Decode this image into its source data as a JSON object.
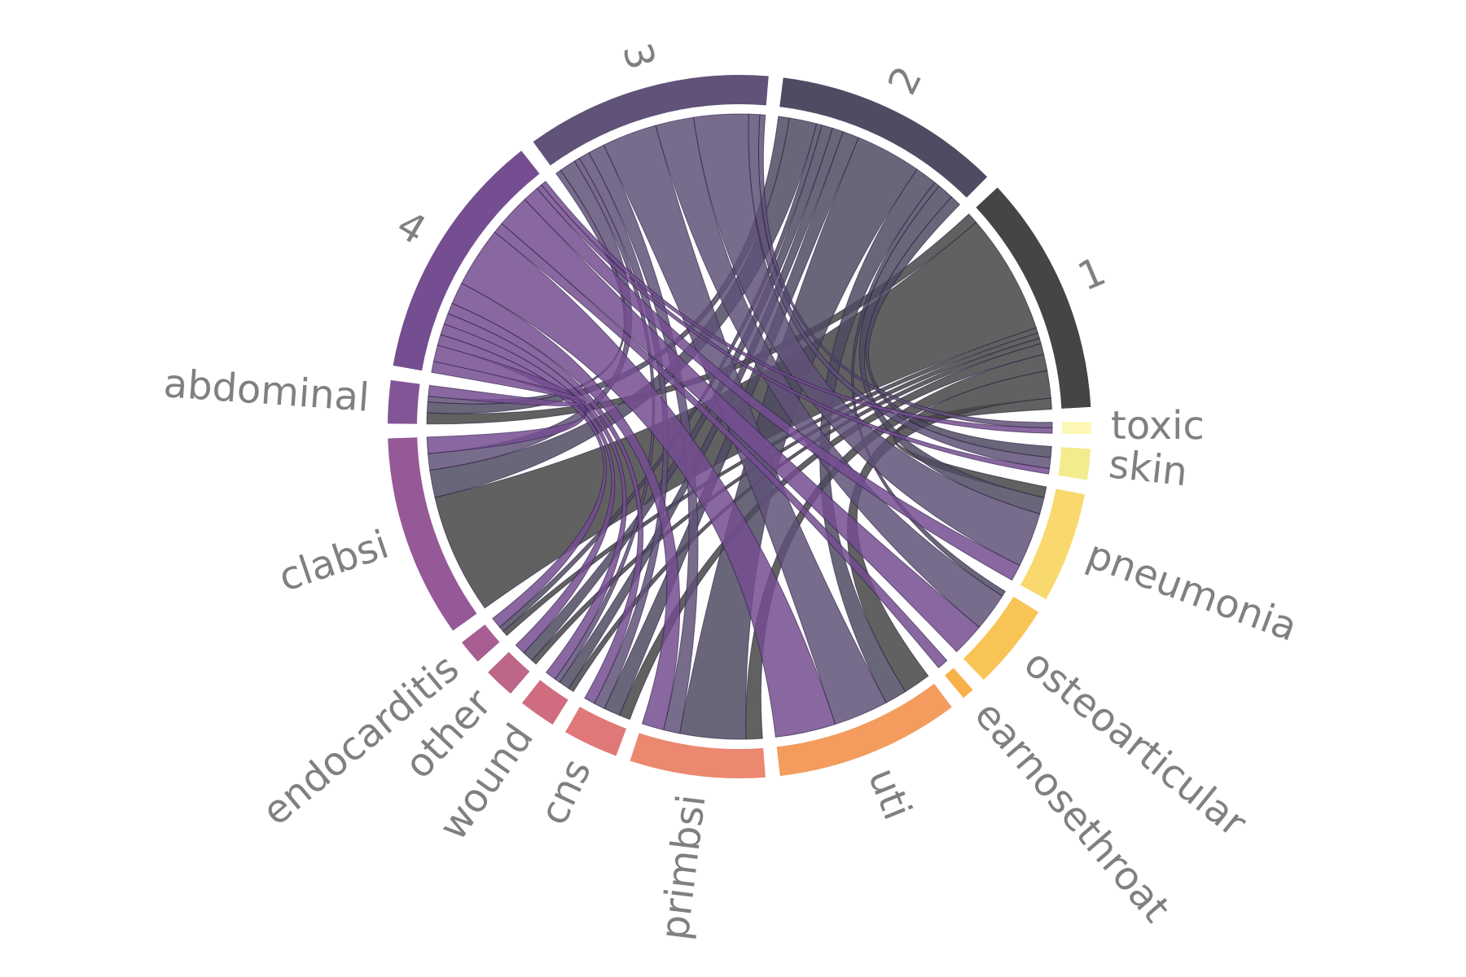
{
  "chart_data": {
    "type": "chord",
    "groups": [
      {
        "name": "1",
        "color": "#454545",
        "flows": [
          0,
          0,
          2,
          0,
          0,
          5,
          3,
          2,
          1,
          1,
          1,
          22,
          2
        ]
      },
      {
        "name": "2",
        "color": "#4f4b62",
        "flows": [
          0,
          2,
          3,
          1,
          0,
          4,
          12,
          3,
          2,
          2,
          1,
          5,
          2
        ]
      },
      {
        "name": "3",
        "color": "#605279",
        "flows": [
          1,
          2,
          10,
          7,
          0,
          10,
          3,
          2,
          1,
          0,
          0,
          3,
          1
        ]
      },
      {
        "name": "4",
        "color": "#744e90",
        "flows": [
          1,
          1,
          3,
          6,
          2,
          11,
          4,
          2,
          2,
          2,
          2,
          3,
          2
        ]
      }
    ],
    "categories": [
      {
        "name": "toxic",
        "color": "#fcf7b2"
      },
      {
        "name": "skin",
        "color": "#f3ec8f"
      },
      {
        "name": "pneumonia",
        "color": "#f9d96e"
      },
      {
        "name": "osteoarticular",
        "color": "#f9c456"
      },
      {
        "name": "earnosethroat",
        "color": "#f8b14a"
      },
      {
        "name": "uti",
        "color": "#f39c5e"
      },
      {
        "name": "primbsi",
        "color": "#eb8870"
      },
      {
        "name": "cns",
        "color": "#e07878"
      },
      {
        "name": "wound",
        "color": "#d06c80"
      },
      {
        "name": "other",
        "color": "#be6689"
      },
      {
        "name": "endocarditis",
        "color": "#a85e92"
      },
      {
        "name": "clabsi",
        "color": "#955998"
      },
      {
        "name": "abdominal",
        "color": "#845596"
      }
    ]
  }
}
